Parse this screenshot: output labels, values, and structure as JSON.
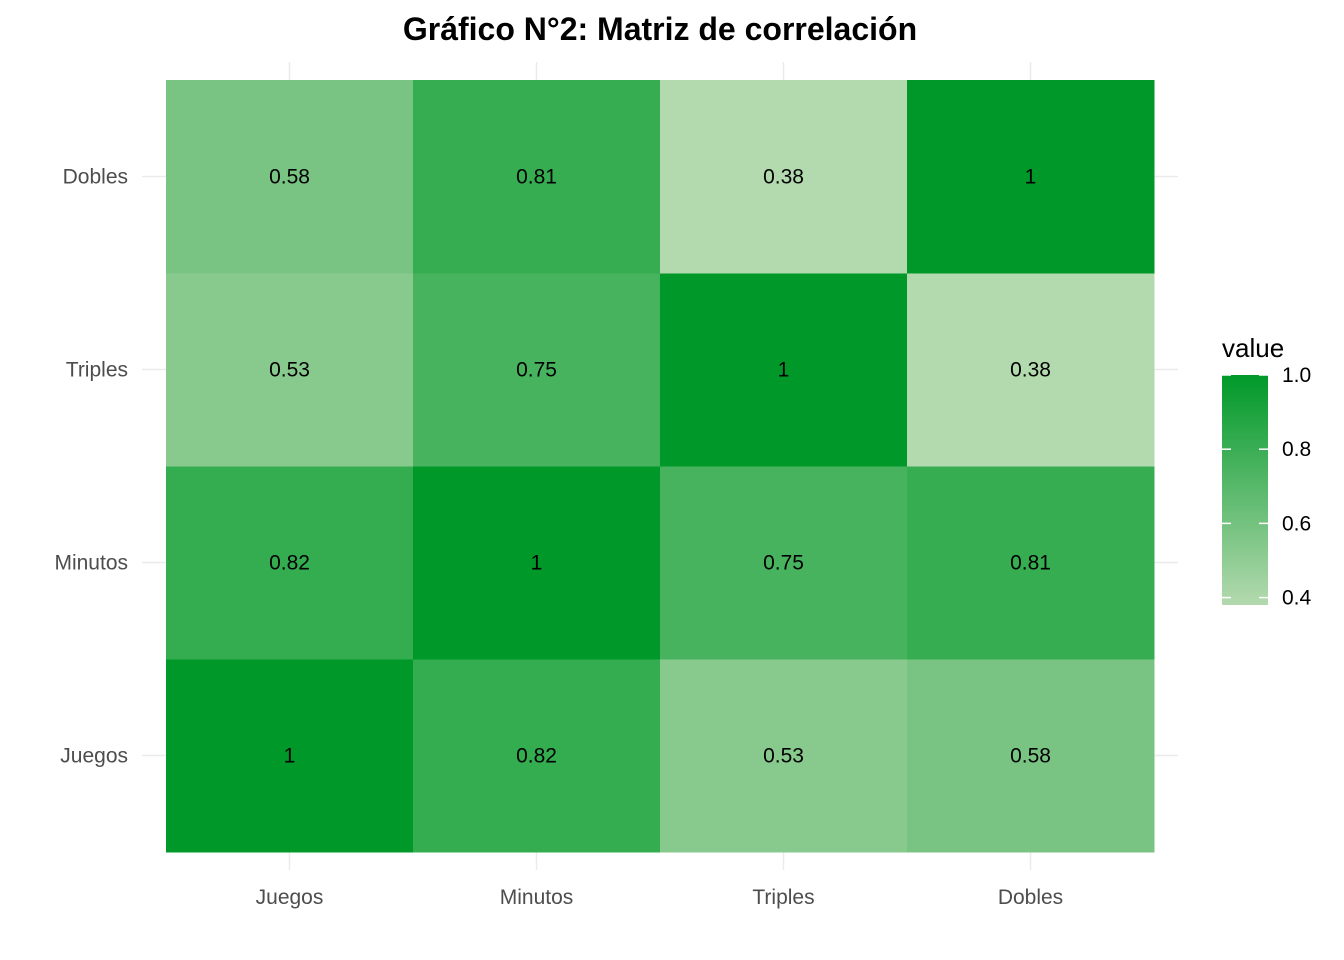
{
  "chart_data": {
    "type": "heatmap",
    "title": "Gráfico N°2: Matriz de correlación",
    "x_categories": [
      "Juegos",
      "Minutos",
      "Triples",
      "Dobles"
    ],
    "y_categories": [
      "Juegos",
      "Minutos",
      "Triples",
      "Dobles"
    ],
    "values": [
      [
        1,
        0.82,
        0.53,
        0.58
      ],
      [
        0.82,
        1,
        0.75,
        0.81
      ],
      [
        0.53,
        0.75,
        1,
        0.38
      ],
      [
        0.58,
        0.81,
        0.38,
        1
      ]
    ],
    "cell_labels": [
      [
        "1",
        "0.82",
        "0.53",
        "0.58"
      ],
      [
        "0.82",
        "1",
        "0.75",
        "0.81"
      ],
      [
        "0.53",
        "0.75",
        "1",
        "0.38"
      ],
      [
        "0.58",
        "0.81",
        "0.38",
        "1"
      ]
    ],
    "legend": {
      "title": "value",
      "position": "right",
      "range": [
        0.38,
        1.0
      ],
      "ticks": [
        0.4,
        0.6,
        0.8,
        1.0
      ],
      "tick_labels": [
        "0.4",
        "0.6",
        "0.8",
        "1.0"
      ]
    },
    "colors": {
      "low": "#b3d9ae",
      "high": "#009929"
    },
    "grid": true
  }
}
